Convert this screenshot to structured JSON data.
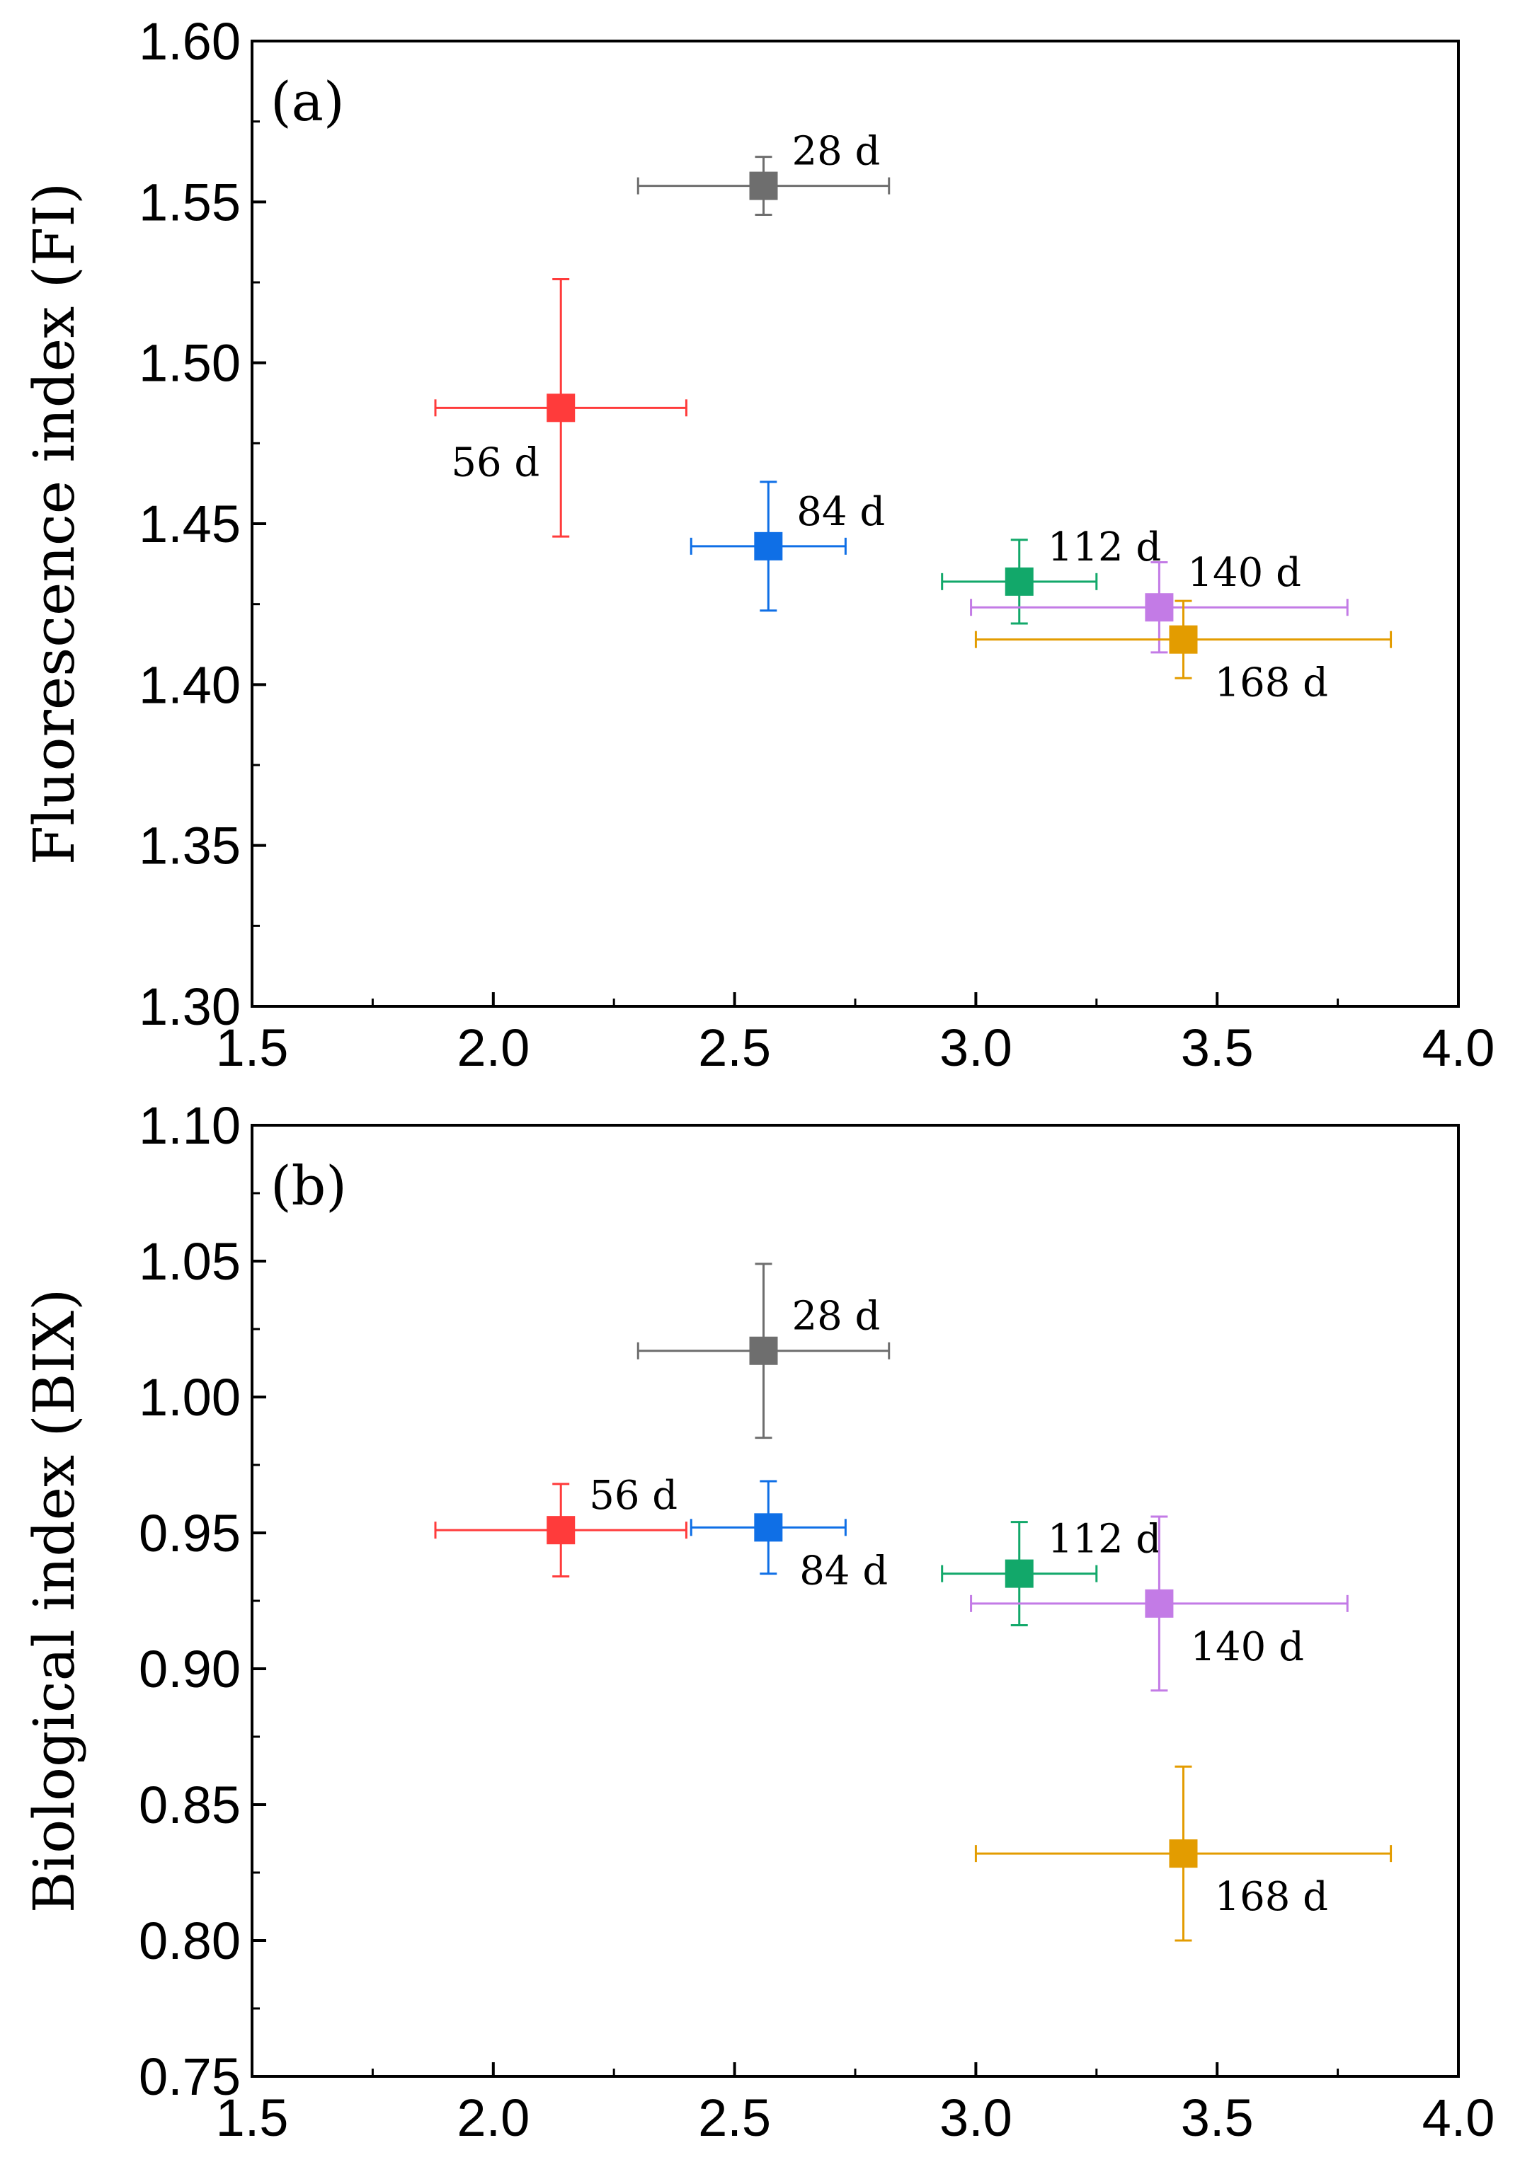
{
  "chart_data": [
    {
      "type": "scatter",
      "panel_label": "(a)",
      "xlabel": "",
      "ylabel": "Fluorescence index (FI)",
      "xlim": [
        1.5,
        4.0
      ],
      "ylim": [
        1.3,
        1.6
      ],
      "x_ticks": [
        "1.5",
        "2.0",
        "2.5",
        "3.0",
        "3.5",
        "4.0"
      ],
      "y_ticks": [
        "1.30",
        "1.35",
        "1.40",
        "1.45",
        "1.50",
        "1.55",
        "1.60"
      ],
      "grid": false,
      "series": [
        {
          "name": "28 d",
          "color": "#6e6e6e",
          "x": 2.56,
          "y": 1.555,
          "xerr": 0.26,
          "yerr": 0.009,
          "label_pos": "upper-right"
        },
        {
          "name": "56 d",
          "color": "#ff3b3b",
          "x": 2.14,
          "y": 1.486,
          "xerr": 0.26,
          "yerr": 0.04,
          "label_pos": "lower-left"
        },
        {
          "name": "84 d",
          "color": "#0f6fe6",
          "x": 2.57,
          "y": 1.443,
          "xerr": 0.16,
          "yerr": 0.02,
          "label_pos": "upper-right"
        },
        {
          "name": "112 d",
          "color": "#12a86a",
          "x": 3.09,
          "y": 1.432,
          "xerr": 0.16,
          "yerr": 0.013,
          "label_pos": "upper-right"
        },
        {
          "name": "140 d",
          "color": "#c37be6",
          "x": 3.38,
          "y": 1.424,
          "xerr": 0.39,
          "yerr": 0.014,
          "label_pos": "upper-right"
        },
        {
          "name": "168 d",
          "color": "#e39c00",
          "x": 3.43,
          "y": 1.414,
          "xerr": 0.43,
          "yerr": 0.012,
          "label_pos": "lower-right"
        }
      ]
    },
    {
      "type": "scatter",
      "panel_label": "(b)",
      "xlabel": "",
      "ylabel": "Biological index (BIX)",
      "xlim": [
        1.5,
        4.0
      ],
      "ylim": [
        0.75,
        1.1
      ],
      "x_ticks": [
        "1.5",
        "2.0",
        "2.5",
        "3.0",
        "3.5",
        "4.0"
      ],
      "y_ticks": [
        "0.75",
        "0.80",
        "0.85",
        "0.90",
        "0.95",
        "1.00",
        "1.05",
        "1.10"
      ],
      "grid": false,
      "series": [
        {
          "name": "28 d",
          "color": "#6e6e6e",
          "x": 2.56,
          "y": 1.017,
          "xerr": 0.26,
          "yerr": 0.032,
          "label_pos": "upper-right"
        },
        {
          "name": "56 d",
          "color": "#ff3b3b",
          "x": 2.14,
          "y": 0.951,
          "xerr": 0.26,
          "yerr": 0.017,
          "label_pos": "upper-right"
        },
        {
          "name": "84 d",
          "color": "#0f6fe6",
          "x": 2.57,
          "y": 0.952,
          "xerr": 0.16,
          "yerr": 0.017,
          "label_pos": "lower-right"
        },
        {
          "name": "112 d",
          "color": "#12a86a",
          "x": 3.09,
          "y": 0.935,
          "xerr": 0.16,
          "yerr": 0.019,
          "label_pos": "upper-right"
        },
        {
          "name": "140 d",
          "color": "#c37be6",
          "x": 3.38,
          "y": 0.924,
          "xerr": 0.39,
          "yerr": 0.032,
          "label_pos": "lower-right"
        },
        {
          "name": "168 d",
          "color": "#e39c00",
          "x": 3.43,
          "y": 0.832,
          "xerr": 0.43,
          "yerr": 0.032,
          "label_pos": "lower-right"
        }
      ]
    }
  ]
}
